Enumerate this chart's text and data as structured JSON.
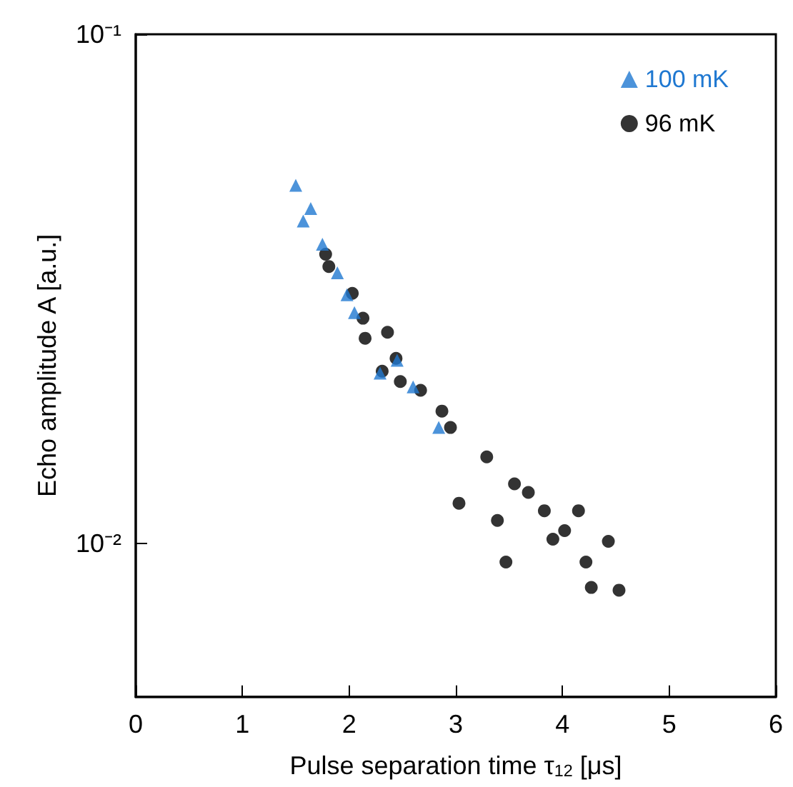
{
  "chart_data": {
    "type": "scatter",
    "xlabel": "Pulse separation time τ$_{12}$ [μs]",
    "ylabel": "Echo amplitude A [a.u.]",
    "log": "y",
    "xlim": [
      0,
      6
    ],
    "xticks": [
      0,
      1,
      2,
      3,
      4,
      5,
      6
    ],
    "ylim": [
      0.005,
      0.1
    ],
    "yticks": [
      {
        "value": 0.01,
        "label": "10⁻²"
      },
      {
        "value": 0.1,
        "label": "10⁻¹"
      }
    ],
    "legend": "top right",
    "series": [
      {
        "name": "100 mK",
        "color": "#1f78d1",
        "marker": "triangle",
        "x": [
          1.5,
          1.64,
          1.57,
          1.75,
          1.89,
          1.98,
          2.05,
          2.29,
          2.45,
          2.6,
          2.84
        ],
        "values": [
          0.0505,
          0.0455,
          0.043,
          0.0387,
          0.034,
          0.0308,
          0.0284,
          0.0216,
          0.0229,
          0.0203,
          0.0169
        ]
      },
      {
        "name": "96 mK",
        "color": "#000000",
        "marker": "circle",
        "x": [
          1.78,
          1.81,
          2.03,
          2.13,
          2.15,
          2.36,
          2.44,
          2.31,
          2.48,
          2.67,
          2.87,
          2.95,
          3.29,
          3.55,
          3.68,
          3.03,
          3.83,
          4.15,
          3.39,
          4.02,
          3.91,
          4.43,
          3.47,
          4.22,
          4.27,
          4.53
        ],
        "values": [
          0.037,
          0.035,
          0.031,
          0.0277,
          0.0253,
          0.026,
          0.0231,
          0.0218,
          0.0208,
          0.02,
          0.0182,
          0.0169,
          0.0148,
          0.0131,
          0.0126,
          0.012,
          0.0116,
          0.0116,
          0.0111,
          0.0106,
          0.0102,
          0.0101,
          0.0092,
          0.0092,
          0.0082,
          0.0081
        ]
      }
    ]
  }
}
